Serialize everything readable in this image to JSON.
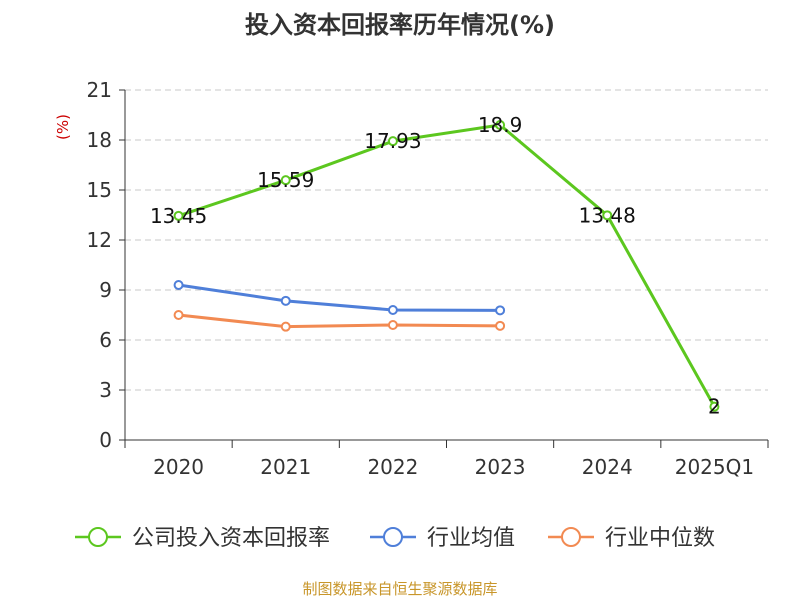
{
  "chart_data": {
    "type": "line",
    "title": "投入资本回报率历年情况(%)",
    "ylabel": "(%)",
    "ylim": [
      0,
      21
    ],
    "yticks": [
      0,
      3,
      6,
      9,
      12,
      15,
      18,
      21
    ],
    "categories": [
      "2020",
      "2021",
      "2022",
      "2023",
      "2024",
      "2025Q1"
    ],
    "grid": true,
    "legend_position": "bottom",
    "series": [
      {
        "name": "公司投入资本回报率",
        "color": "#5cc71f",
        "show_labels": true,
        "values": [
          13.45,
          15.59,
          17.93,
          18.9,
          13.48,
          2
        ],
        "labels": [
          "13.45",
          "15.59",
          "17.93",
          "18.9",
          "13.48",
          "2"
        ]
      },
      {
        "name": "行业均值",
        "color": "#4f7fd9",
        "show_labels": false,
        "values": [
          9.3,
          8.35,
          7.8,
          7.78,
          null,
          null
        ]
      },
      {
        "name": "行业中位数",
        "color": "#f28a52",
        "show_labels": false,
        "values": [
          7.5,
          6.8,
          6.9,
          6.85,
          null,
          null
        ]
      }
    ],
    "source": "制图数据来自恒生聚源数据库"
  }
}
